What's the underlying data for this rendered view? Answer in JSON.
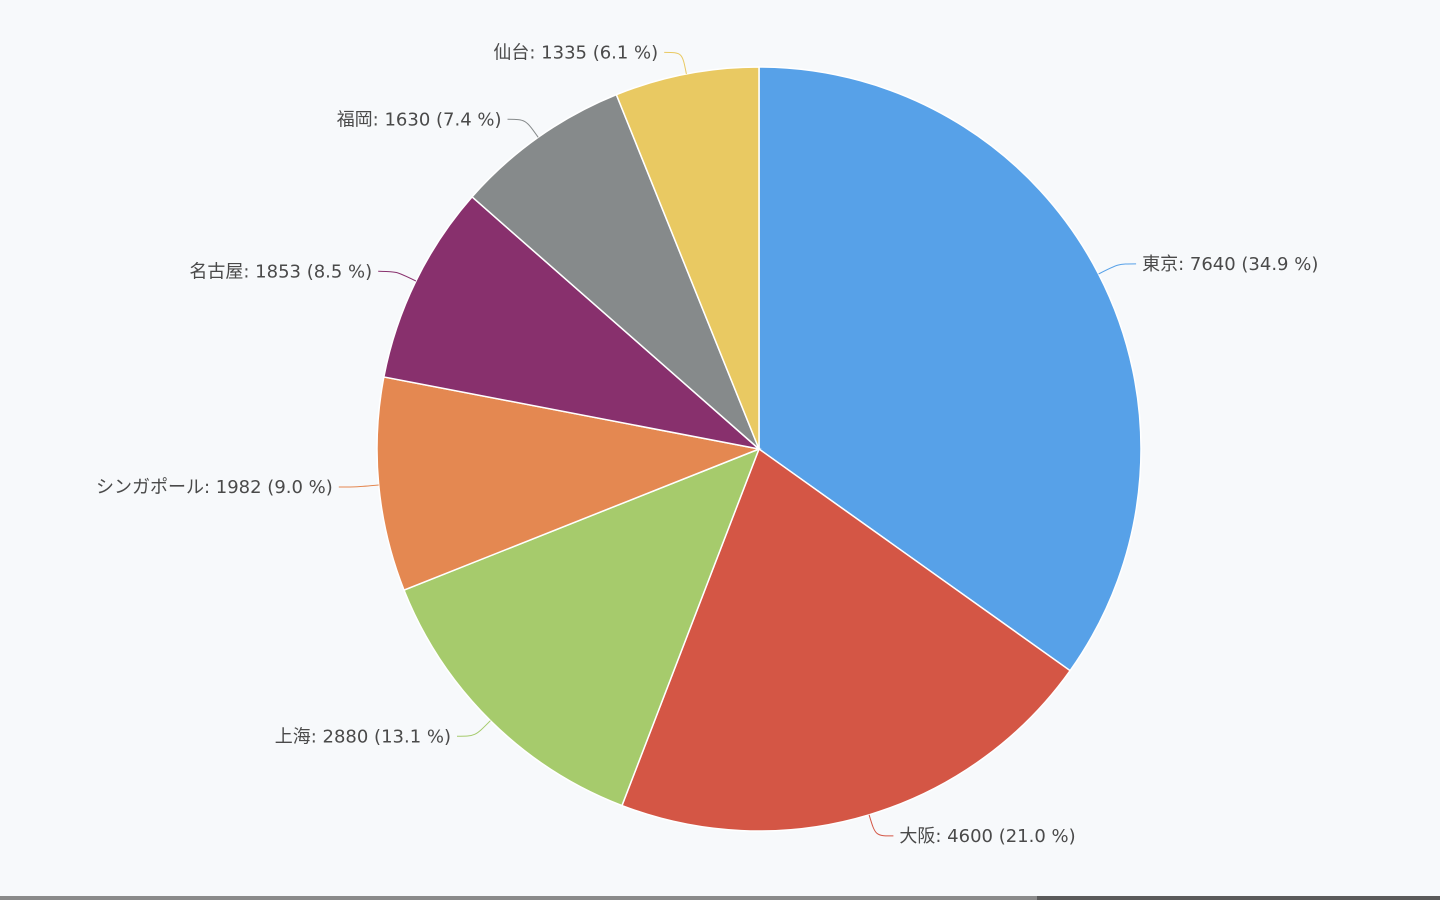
{
  "chart_data": {
    "type": "pie",
    "slices": [
      {
        "name": "東京",
        "value": 7640,
        "percent": 34.9,
        "color": "#57a1e8",
        "label": "東京: 7640 (34.9 %)"
      },
      {
        "name": "大阪",
        "value": 4600,
        "percent": 21.0,
        "color": "#d45645",
        "label": "大阪: 4600 (21.0 %)"
      },
      {
        "name": "上海",
        "value": 2880,
        "percent": 13.1,
        "color": "#a6cb6c",
        "label": "上海: 2880 (13.1 %)"
      },
      {
        "name": "シンガポール",
        "value": 1982,
        "percent": 9.0,
        "color": "#e48851",
        "label": "シンガポール: 1982 (9.0 %)"
      },
      {
        "name": "名古屋",
        "value": 1853,
        "percent": 8.5,
        "color": "#88306d",
        "label": "名古屋: 1853 (8.5 %)"
      },
      {
        "name": "福岡",
        "value": 1630,
        "percent": 7.4,
        "color": "#868a8b",
        "label": "福岡: 1630 (7.4 %)"
      },
      {
        "name": "仙台",
        "value": 1335,
        "percent": 6.1,
        "color": "#e9c962",
        "label": "仙台: 1335 (6.1 %)"
      }
    ]
  }
}
